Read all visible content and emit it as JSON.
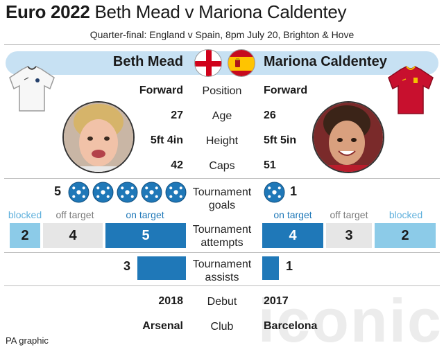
{
  "header": {
    "title_bold": "Euro 2022",
    "title_rest": " Beth Mead v Mariona Caldentey",
    "subtitle": "Quarter-final: England v Spain, 8pm July 20, Brighton & Hove"
  },
  "players": {
    "left": {
      "name": "Beth Mead",
      "position": "Forward",
      "age": "27",
      "height": "5ft 4in",
      "caps": "42",
      "goals": "5",
      "assists": "3",
      "debut": "2018",
      "club": "Arsenal"
    },
    "right": {
      "name": "Mariona Caldentey",
      "position": "Forward",
      "age": "26",
      "height": "5ft 5in",
      "caps": "51",
      "goals": "1",
      "assists": "1",
      "debut": "2017",
      "club": "Barcelona"
    }
  },
  "labels": {
    "position": "Position",
    "age": "Age",
    "height": "Height",
    "caps": "Caps",
    "goals_1": "Tournament",
    "goals_2": "goals",
    "attempts_1": "Tournament",
    "attempts_2": "attempts",
    "assists_1": "Tournament",
    "assists_2": "assists",
    "debut": "Debut",
    "club": "Club"
  },
  "attempts": {
    "categories": {
      "blocked": "blocked",
      "off_target": "off target",
      "on_target": "on target"
    },
    "left": {
      "blocked": "2",
      "off_target": "4",
      "on_target": "5"
    },
    "right": {
      "on_target": "4",
      "off_target": "3",
      "blocked": "2"
    }
  },
  "colors": {
    "band": "#c7e1f3",
    "blue": "#1f78b8",
    "light_blue": "#8ccbe8",
    "grey": "#e6e6e6",
    "england_red": "#d0021b",
    "spain_red": "#c60b1e",
    "spain_yellow": "#ffc400"
  },
  "icons": [
    "england-flag-icon",
    "spain-flag-icon",
    "football-icon",
    "england-shirt-icon",
    "spain-shirt-icon"
  ],
  "footer": {
    "credit": "PA graphic"
  },
  "watermark": "iconic"
}
